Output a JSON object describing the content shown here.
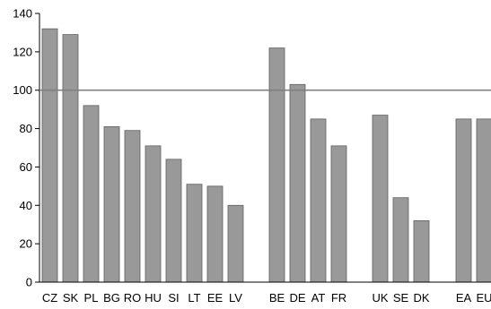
{
  "chart_data": {
    "type": "bar",
    "categories": [
      "CZ",
      "SK",
      "PL",
      "BG",
      "RO",
      "HU",
      "SI",
      "LT",
      "EE",
      "LV",
      "BE",
      "DE",
      "AT",
      "FR",
      "UK",
      "SE",
      "DK",
      "EA",
      "EU"
    ],
    "values": [
      132,
      129,
      92,
      81,
      79,
      71,
      64,
      51,
      50,
      40,
      122,
      103,
      85,
      71,
      87,
      44,
      32,
      85,
      85
    ],
    "ylim": [
      0,
      140
    ],
    "yticks": [
      0,
      20,
      40,
      60,
      80,
      100,
      120,
      140
    ],
    "reference_line": 100,
    "grid": false,
    "colors": {
      "bar_fill": "#999999",
      "bar_stroke": "#5f5f5f",
      "reference_line": "#808080",
      "axis": "#000000"
    }
  }
}
